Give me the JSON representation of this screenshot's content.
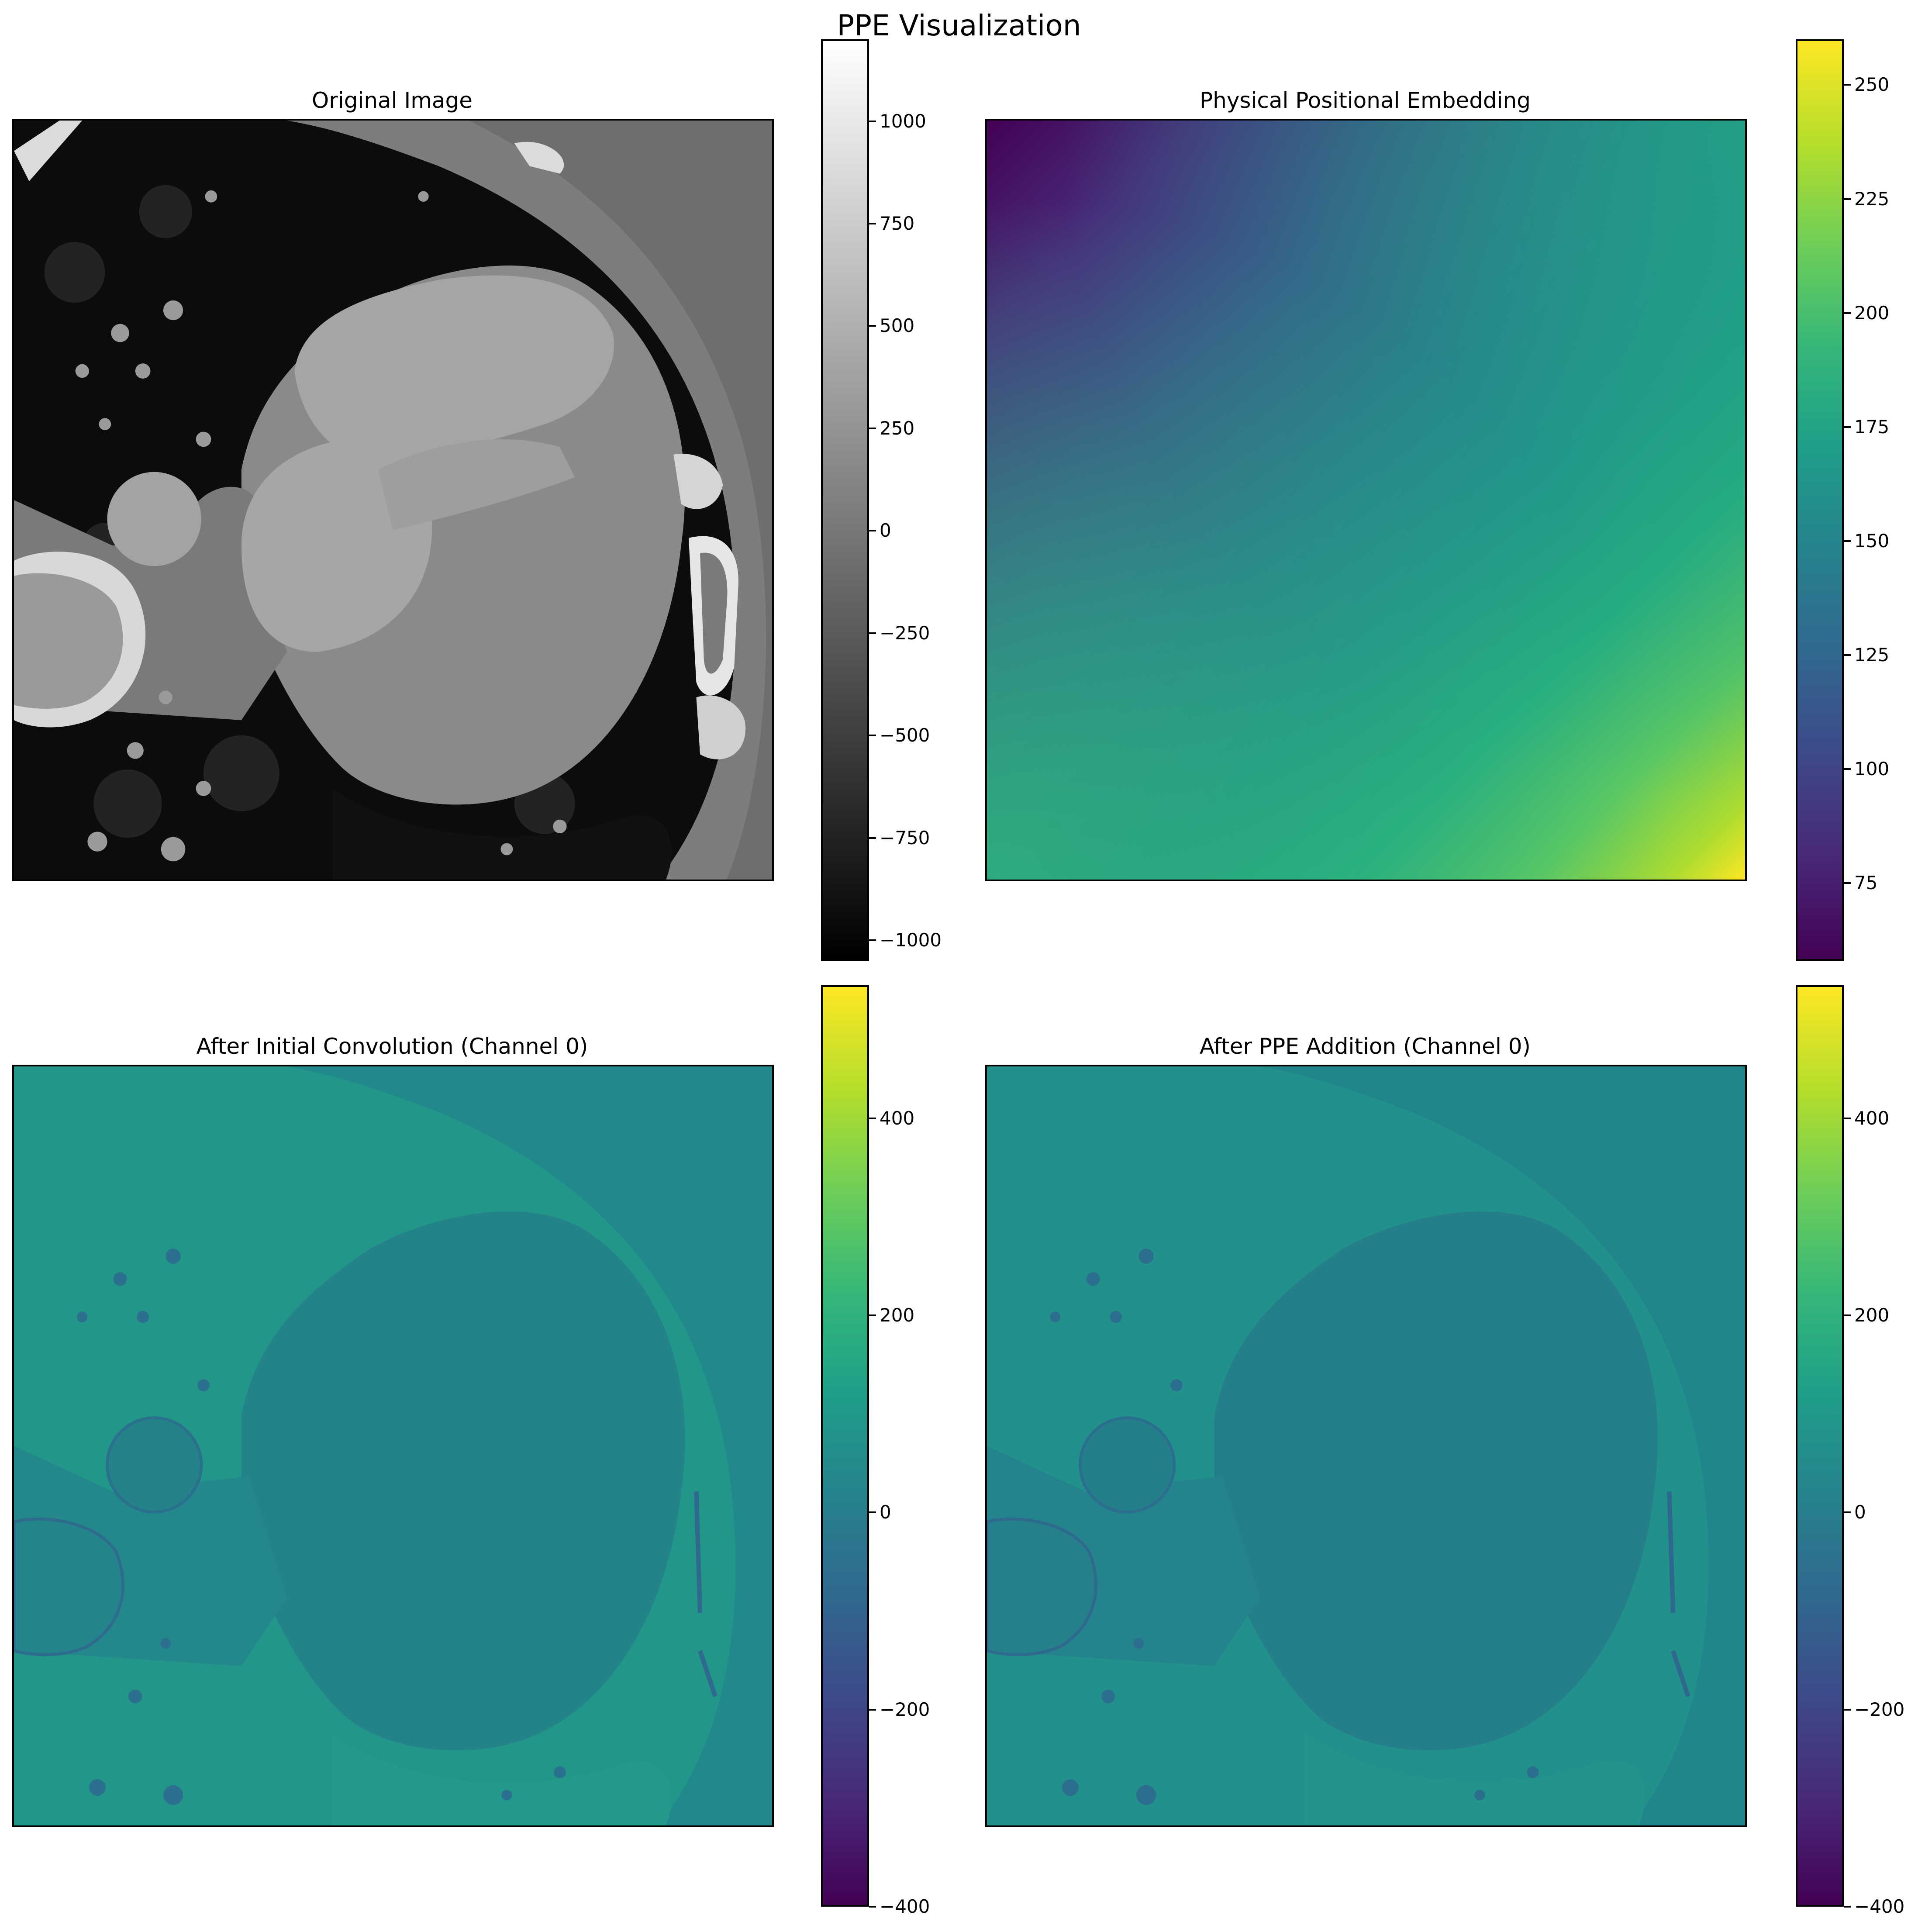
{
  "figure": {
    "title": "PPE Visualization"
  },
  "panels": [
    {
      "id": "original",
      "title": "Original Image"
    },
    {
      "id": "ppe",
      "title": "Physical Positional Embedding"
    },
    {
      "id": "conv",
      "title": "After Initial Convolution (Channel 0)"
    },
    {
      "id": "ppe_add",
      "title": "After PPE Addition (Channel 0)"
    }
  ],
  "colorbars": [
    {
      "id": "original",
      "colormap": "gray",
      "min": -1050,
      "max": 1200,
      "ticks": [
        -1000,
        -750,
        -500,
        -250,
        0,
        250,
        500,
        750,
        1000
      ],
      "tick_labels": [
        "−1000",
        "−750",
        "−500",
        "−250",
        "0",
        "250",
        "500",
        "750",
        "1000"
      ]
    },
    {
      "id": "ppe",
      "colormap": "viridis",
      "min": 58,
      "max": 260,
      "ticks": [
        75,
        100,
        125,
        150,
        175,
        200,
        225,
        250
      ],
      "tick_labels": [
        "75",
        "100",
        "125",
        "150",
        "175",
        "200",
        "225",
        "250"
      ]
    },
    {
      "id": "conv",
      "colormap": "viridis",
      "min": -400,
      "max": 535,
      "ticks": [
        -400,
        -200,
        0,
        200,
        400
      ],
      "tick_labels": [
        "−400",
        "−200",
        "0",
        "200",
        "400"
      ]
    },
    {
      "id": "ppe_add",
      "colormap": "viridis",
      "min": -400,
      "max": 535,
      "ticks": [
        -400,
        -200,
        0,
        200,
        400
      ],
      "tick_labels": [
        "−400",
        "−200",
        "0",
        "200",
        "400"
      ]
    }
  ]
}
